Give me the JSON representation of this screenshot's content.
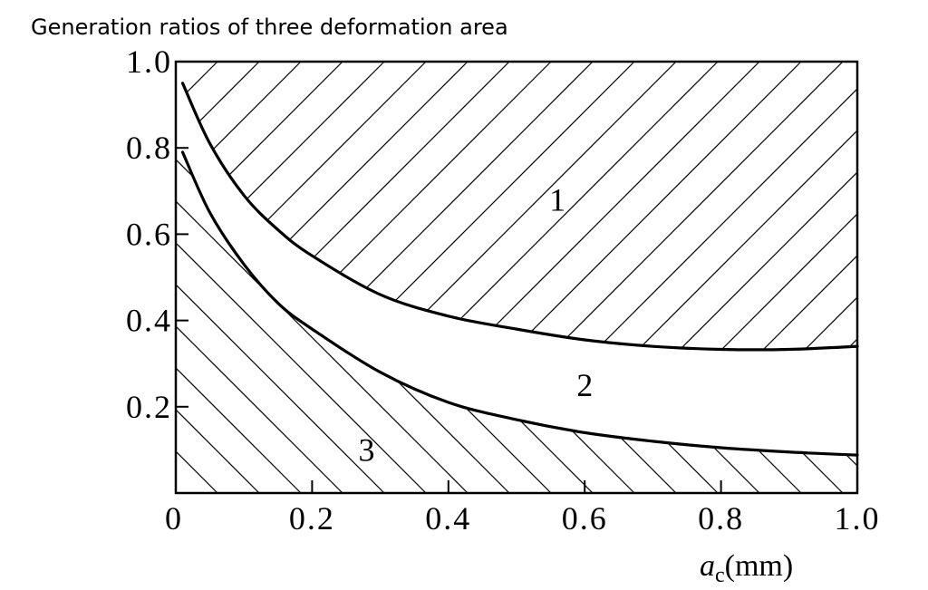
{
  "chart_data": {
    "type": "area",
    "title": "Generation ratios of three deformation area",
    "xlabel": {
      "var": "a",
      "sub": "c",
      "unit": "(mm)"
    },
    "ylabel": "",
    "xlim": [
      0,
      1.0
    ],
    "ylim": [
      0,
      1.0
    ],
    "x_ticks": [
      {
        "value": 0,
        "label": "0"
      },
      {
        "value": 0.2,
        "label": "0.2"
      },
      {
        "value": 0.4,
        "label": "0.4"
      },
      {
        "value": 0.6,
        "label": "0.6"
      },
      {
        "value": 0.8,
        "label": "0.8"
      },
      {
        "value": 1.0,
        "label": "1.0"
      }
    ],
    "y_ticks": [
      {
        "value": 0.2,
        "label": "0.2"
      },
      {
        "value": 0.4,
        "label": "0.4"
      },
      {
        "value": 0.6,
        "label": "0.6"
      },
      {
        "value": 0.8,
        "label": "0.8"
      },
      {
        "value": 1.0,
        "label": "1.0"
      }
    ],
    "series": [
      {
        "x": [
          0.01,
          0.05,
          0.1,
          0.15,
          0.2,
          0.3,
          0.4,
          0.5,
          0.6,
          0.7,
          0.8,
          0.9,
          1.0
        ],
        "y": [
          0.95,
          0.81,
          0.69,
          0.61,
          0.55,
          0.46,
          0.41,
          0.38,
          0.355,
          0.34,
          0.333,
          0.333,
          0.34
        ]
      },
      {
        "x": [
          0.01,
          0.05,
          0.1,
          0.15,
          0.2,
          0.3,
          0.4,
          0.5,
          0.6,
          0.7,
          0.8,
          0.9,
          1.0
        ],
        "y": [
          0.79,
          0.65,
          0.53,
          0.44,
          0.38,
          0.28,
          0.21,
          0.17,
          0.14,
          0.12,
          0.105,
          0.095,
          0.088
        ]
      }
    ],
    "region_labels": [
      {
        "label": "1",
        "x": 0.56,
        "y": 0.68
      },
      {
        "label": "2",
        "x": 0.6,
        "y": 0.25
      },
      {
        "label": "3",
        "x": 0.28,
        "y": 0.1
      }
    ],
    "grid": false,
    "legend": "none"
  }
}
